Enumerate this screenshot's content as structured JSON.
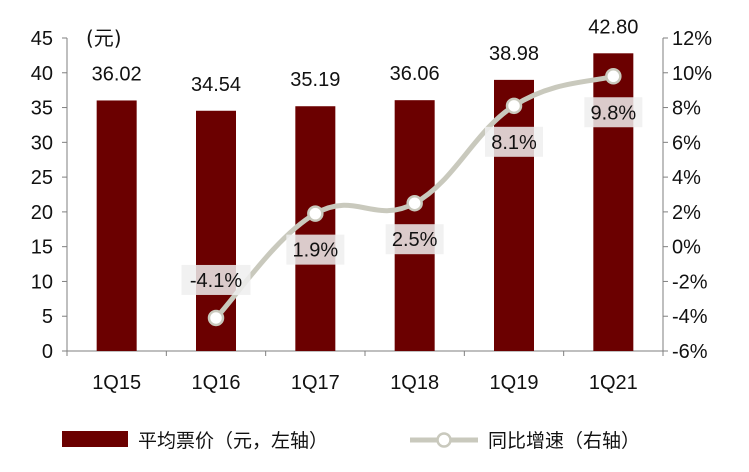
{
  "chart_data": {
    "type": "bar",
    "categories": [
      "1Q15",
      "1Q16",
      "1Q17",
      "1Q18",
      "1Q19",
      "1Q21"
    ],
    "series": [
      {
        "name": "平均票价（元，左轴）",
        "type": "bar",
        "axis": "left",
        "color": "#6b0000",
        "values": [
          36.02,
          34.54,
          35.19,
          36.06,
          38.98,
          42.8
        ],
        "labels": [
          "36.02",
          "34.54",
          "35.19",
          "36.06",
          "38.98",
          "42.80"
        ]
      },
      {
        "name": "同比增速（右轴）",
        "type": "line",
        "axis": "right",
        "color": "#c9c9bd",
        "values": [
          null,
          -4.1,
          1.9,
          2.5,
          8.1,
          9.8
        ],
        "labels": [
          "",
          "-4.1%",
          "1.9%",
          "2.5%",
          "8.1%",
          "9.8%"
        ]
      }
    ],
    "y_left": {
      "unit_label": "(元)",
      "ylim": [
        0,
        45
      ],
      "ticks": [
        "0",
        "5",
        "10",
        "15",
        "20",
        "25",
        "30",
        "35",
        "40",
        "45"
      ]
    },
    "y_right": {
      "ylim": [
        -6,
        12
      ],
      "ticks": [
        "-6%",
        "-4%",
        "-2%",
        "0%",
        "2%",
        "4%",
        "6%",
        "8%",
        "10%",
        "12%"
      ]
    },
    "grid": false,
    "legend_position": "bottom"
  }
}
